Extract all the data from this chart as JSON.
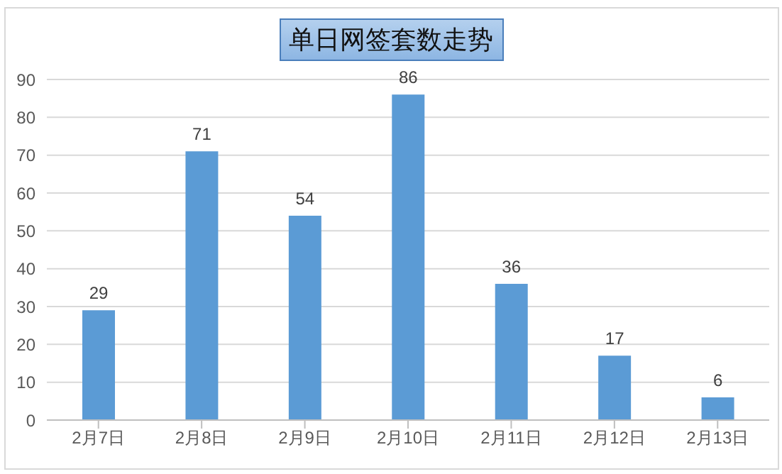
{
  "chart_data": {
    "type": "bar",
    "title": "单日网签套数走势",
    "categories": [
      "2月7日",
      "2月8日",
      "2月9日",
      "2月10日",
      "2月11日",
      "2月12日",
      "2月13日"
    ],
    "values": [
      29,
      71,
      54,
      86,
      36,
      17,
      6
    ],
    "color": "#5b9bd5",
    "ylim": [
      0,
      90
    ],
    "yticks": [
      0,
      10,
      20,
      30,
      40,
      50,
      60,
      70,
      80,
      90
    ],
    "grid": "y",
    "data_labels": true
  }
}
